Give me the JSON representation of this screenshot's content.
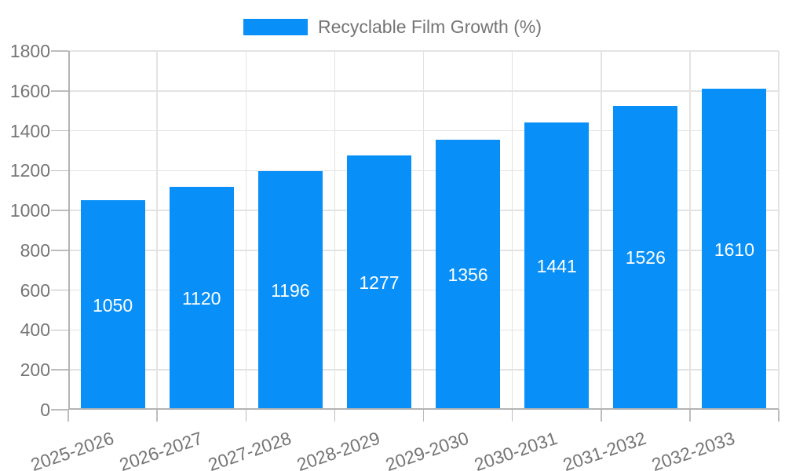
{
  "chart_data": {
    "type": "bar",
    "title": "",
    "legend": {
      "label": "Recyclable Film Growth (%)",
      "position": "top-center"
    },
    "categories": [
      "2025-2026",
      "2026-2027",
      "2027-2028",
      "2028-2029",
      "2029-2030",
      "2030-2031",
      "2031-2032",
      "2032-2033"
    ],
    "values": [
      1050,
      1120,
      1196,
      1277,
      1356,
      1441,
      1526,
      1610
    ],
    "xlabel": "",
    "ylabel": "",
    "ylim": [
      0,
      1800
    ],
    "yticks": [
      0,
      200,
      400,
      600,
      800,
      1000,
      1200,
      1400,
      1600,
      1800
    ],
    "grid": true,
    "x_label_rotation_deg": -19,
    "colors": {
      "bar": "#0990f8",
      "bar_value_text": "#ffffff",
      "axis_text": "#757575",
      "grid_line": "#e3e3e3",
      "axis_line": "#b3b3b3",
      "tick_line": "#bdbdbd",
      "background": "#ffffff"
    }
  }
}
